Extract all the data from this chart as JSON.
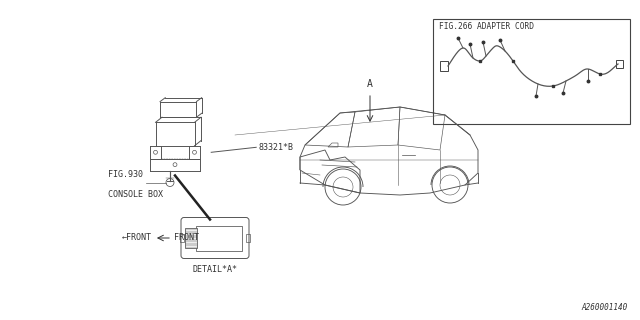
{
  "bg_color": "#ffffff",
  "line_color": "#555555",
  "dark_line_color": "#333333",
  "part_label": "83321*B",
  "fig930_label": "FIG.930",
  "console_box_label": "CONSOLE BOX",
  "detail_label": "DETAIL*A*",
  "front_label": "FRONT",
  "fig266_label": "FIG.266 ADAPTER CORD",
  "point_a_label": "A",
  "ref_number": "A260001140",
  "label_fontsize": 6.0,
  "small_fontsize": 5.5
}
